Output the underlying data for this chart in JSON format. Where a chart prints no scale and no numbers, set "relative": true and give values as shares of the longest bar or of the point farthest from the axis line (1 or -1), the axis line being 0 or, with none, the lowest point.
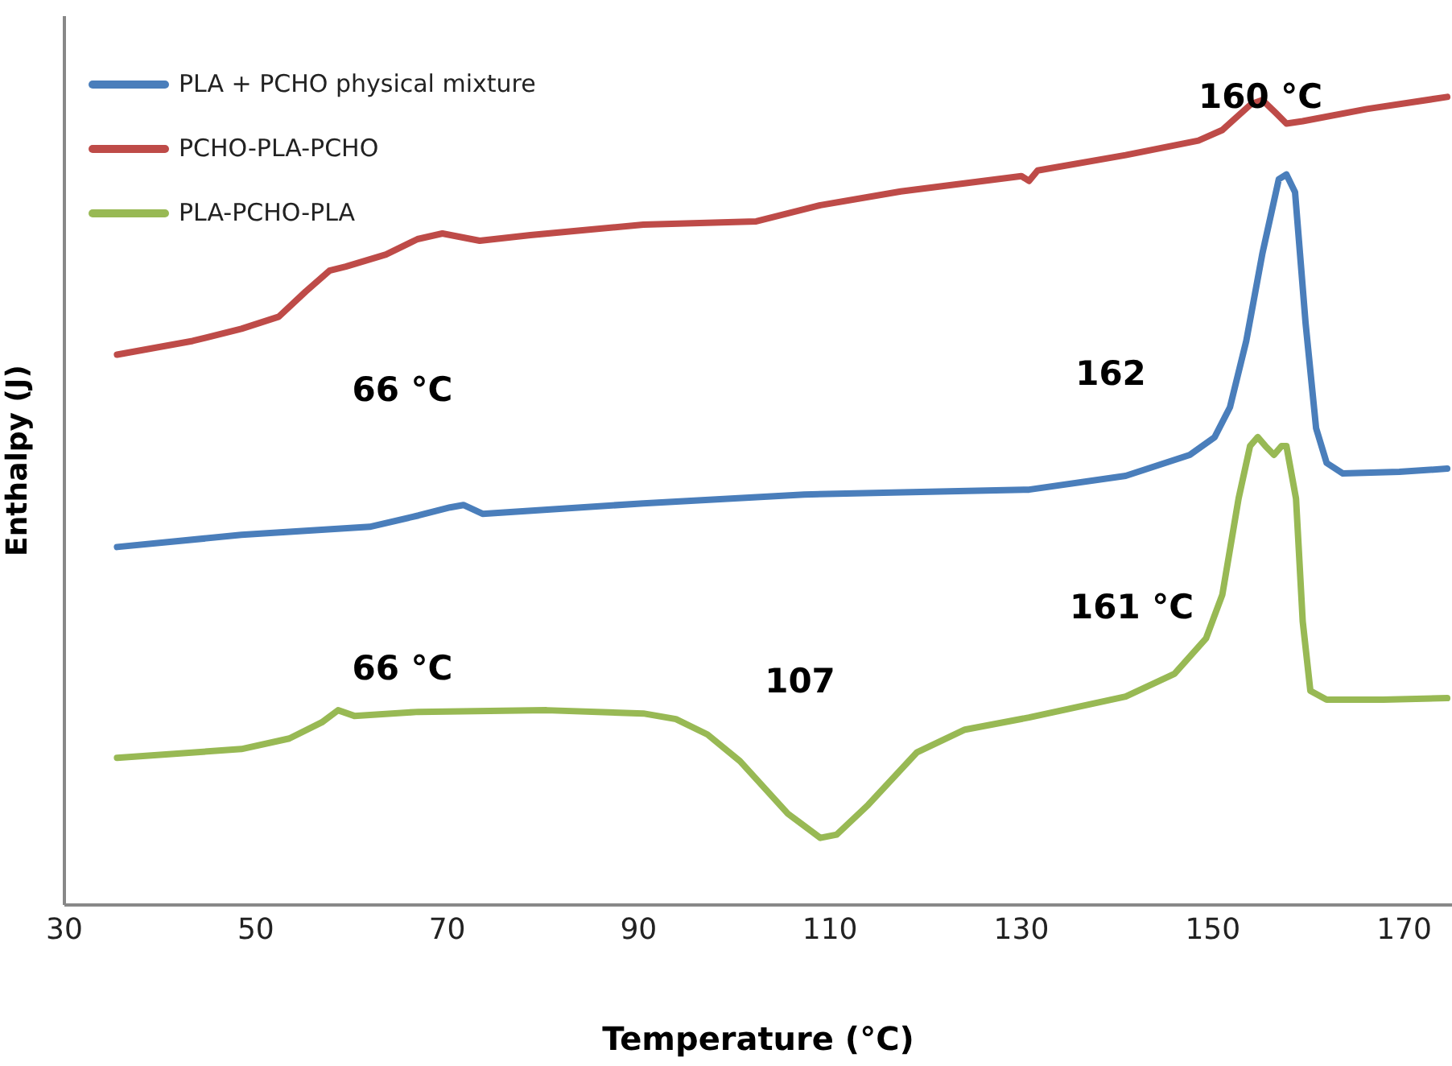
{
  "chart_data": {
    "type": "line",
    "relative": true,
    "xlabel": "Temperature (°C)",
    "ylabel": "Enthalpy (J)",
    "xlim": [
      30,
      175
    ],
    "xticks": [
      30,
      50,
      70,
      90,
      110,
      130,
      150,
      170
    ],
    "legend": "top left",
    "marker": "none",
    "line_style": "solid",
    "grid": false,
    "series": [
      {
        "name": "PLA + PCHO physical mixture",
        "color": "#4a7ebb",
        "x": [
          35.5,
          48.5,
          61.9,
          67.0,
          70.3,
          71.7,
          73.7,
          90.5,
          107.3,
          130.8,
          140.9,
          147.6,
          150.2,
          151.8,
          153.5,
          155.2,
          156.9,
          157.7,
          158.6,
          159.7,
          160.8,
          161.9,
          163.6,
          169.5,
          174.5
        ],
        "values": [
          0.443,
          0.458,
          0.468,
          0.482,
          0.492,
          0.495,
          0.484,
          0.497,
          0.508,
          0.514,
          0.531,
          0.557,
          0.579,
          0.616,
          0.698,
          0.807,
          0.898,
          0.904,
          0.882,
          0.72,
          0.59,
          0.547,
          0.534,
          0.536,
          0.54
        ]
      },
      {
        "name": "PCHO-PLA-PCHO",
        "color": "#be4b48",
        "x": [
          35.5,
          43.4,
          48.5,
          52.4,
          55.2,
          57.7,
          59.4,
          63.6,
          66.9,
          69.5,
          73.4,
          78.7,
          90.5,
          102.3,
          109.0,
          117.4,
          130.0,
          130.8,
          131.7,
          140.9,
          148.5,
          151.0,
          154.0,
          155.2,
          156.6,
          157.7,
          159.4,
          166.1,
          174.5
        ],
        "values": [
          0.681,
          0.698,
          0.713,
          0.728,
          0.759,
          0.785,
          0.79,
          0.805,
          0.824,
          0.831,
          0.822,
          0.829,
          0.842,
          0.846,
          0.866,
          0.883,
          0.902,
          0.896,
          0.909,
          0.928,
          0.946,
          0.959,
          0.991,
          0.996,
          0.98,
          0.967,
          0.97,
          0.985,
          1.0
        ]
      },
      {
        "name": "PLA-PCHO-PLA",
        "color": "#98b954",
        "x": [
          35.5,
          48.5,
          53.5,
          56.9,
          58.6,
          60.3,
          67.0,
          80.4,
          90.5,
          93.9,
          97.2,
          100.6,
          105.6,
          109.0,
          110.7,
          114.0,
          119.1,
          124.1,
          130.8,
          140.9,
          146.0,
          149.3,
          151.0,
          152.7,
          153.9,
          154.7,
          155.5,
          156.4,
          157.2,
          157.7,
          158.7,
          159.4,
          160.2,
          161.9,
          167.8,
          174.5
        ],
        "values": [
          0.182,
          0.193,
          0.206,
          0.226,
          0.241,
          0.234,
          0.239,
          0.241,
          0.237,
          0.23,
          0.211,
          0.178,
          0.113,
          0.083,
          0.087,
          0.124,
          0.189,
          0.217,
          0.232,
          0.258,
          0.286,
          0.33,
          0.384,
          0.503,
          0.568,
          0.579,
          0.568,
          0.557,
          0.568,
          0.568,
          0.503,
          0.351,
          0.265,
          0.254,
          0.254,
          0.256
        ]
      }
    ],
    "annotations": [
      "160 °C",
      "66 °C",
      "162",
      "66 °C",
      "107",
      "161 °C"
    ]
  }
}
